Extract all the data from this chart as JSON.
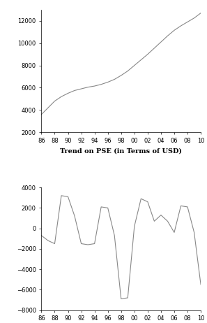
{
  "title1": "Trend on PSE (in Terms of USD)",
  "years": [
    86,
    87,
    88,
    89,
    90,
    91,
    92,
    93,
    94,
    95,
    96,
    97,
    98,
    99,
    100,
    101,
    102,
    103,
    104,
    105,
    106,
    107,
    108,
    109,
    110
  ],
  "trend_values": [
    3600,
    4200,
    4800,
    5200,
    5500,
    5750,
    5900,
    6050,
    6150,
    6300,
    6500,
    6750,
    7100,
    7500,
    8000,
    8500,
    9000,
    9550,
    10100,
    10650,
    11150,
    11550,
    11900,
    12250,
    12700
  ],
  "pbc_years": [
    86,
    87,
    88,
    89,
    90,
    91,
    92,
    93,
    94,
    95,
    96,
    97,
    98,
    99,
    100,
    101,
    102,
    103,
    104,
    105,
    106,
    107,
    108,
    109,
    110
  ],
  "pbc_values": [
    -700,
    -1200,
    -1500,
    3200,
    3100,
    1200,
    -1500,
    -1600,
    -1500,
    2100,
    2000,
    -700,
    -6900,
    -6800,
    200,
    2900,
    2600,
    700,
    1300,
    700,
    -400,
    2200,
    2100,
    -400,
    -5500
  ],
  "xtick_labels": [
    "86",
    "88",
    "90",
    "92",
    "94",
    "96",
    "98",
    "00",
    "02",
    "04",
    "06",
    "08",
    "10"
  ],
  "xtick_positions": [
    86,
    88,
    90,
    92,
    94,
    96,
    98,
    100,
    102,
    104,
    106,
    108,
    110
  ],
  "trend_ylim": [
    2000,
    13000
  ],
  "trend_yticks": [
    2000,
    4000,
    6000,
    8000,
    10000,
    12000
  ],
  "pbc_ylim": [
    -8000,
    4000
  ],
  "pbc_yticks": [
    -8000,
    -6000,
    -4000,
    -2000,
    0,
    2000,
    4000
  ],
  "line_color": "#888888",
  "background_color": "#ffffff",
  "tick_fontsize": 6,
  "title_fontsize": 7
}
